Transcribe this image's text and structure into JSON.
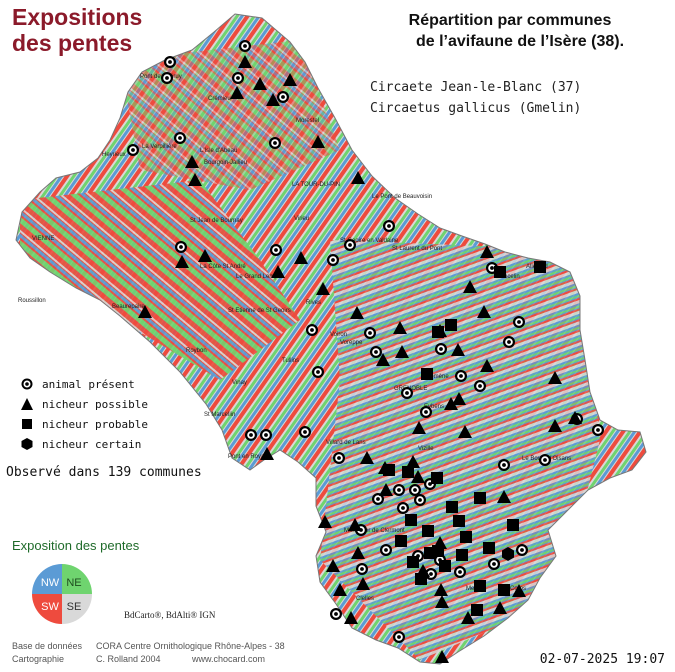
{
  "title": {
    "line1": "Expositions",
    "line2": "des pentes"
  },
  "repartition": {
    "line1": "Répartition par communes",
    "line2": "de l’avifaune de l’Isère (38)."
  },
  "species": {
    "common": "Circaete Jean-le-Blanc  (37)",
    "latin": "Circaetus gallicus (Gmelin)"
  },
  "legend": {
    "items": [
      {
        "symbol": "circle",
        "label": "animal présent"
      },
      {
        "symbol": "triangle",
        "label": "nicheur possible"
      },
      {
        "symbol": "square",
        "label": "nicheur probable"
      },
      {
        "symbol": "hexagon",
        "label": "nicheur certain"
      }
    ]
  },
  "observed": "Observé dans 139 communes",
  "exposition": {
    "title": "Exposition des pentes",
    "quadrants": [
      {
        "label": "NW",
        "color": "#5b9bd5"
      },
      {
        "label": "NE",
        "color": "#6fd46f"
      },
      {
        "label": "SW",
        "color": "#ee4b3e"
      },
      {
        "label": "SE",
        "color": "#d9d9d9"
      }
    ]
  },
  "credits": "BdCarto®, BdAlti® IGN",
  "footer": {
    "base_label": "Base de données",
    "base_value": "CORA Centre Ornithologique Rhône-Alpes - 38",
    "carto_label": "Cartographie",
    "carto_value": "C. Rolland 2004",
    "website": "www.chocard.com"
  },
  "date": "02-07-2025 19:07",
  "places": [
    "Pont de Chéruy",
    "Crémieu",
    "Morestel",
    "Heyrieux",
    "La Verpillière",
    "L'Isle d'Abeau",
    "Bourgoin-Jallieu",
    "LA TOUR-DU-PIN",
    "Le Pont de Beauvoisin",
    "VIENNE",
    "St Jean de Bournay",
    "La Côte St André",
    "Le Grand Lemps",
    "Virieu",
    "St Geoire en Valdaine",
    "St Laurent du Pont",
    "Roussillon",
    "Beaurepaire",
    "St Etienne de St Geoirs",
    "Rives",
    "Voiron",
    "Goncelin",
    "Allevard",
    "Roybon",
    "Vinay",
    "Voreppe",
    "Tullins",
    "GRENOBLE",
    "Domène",
    "St Marcellin",
    "Eybens",
    "Vizille",
    "Villard de Lans",
    "Pont en Royans",
    "Le Bourg d'Oisans",
    "Monestier de Clermont",
    "Mens",
    "Corps",
    "Clelles"
  ],
  "colors": {
    "title": "#8b1a2a",
    "expo_title": "#1f6b2a"
  }
}
